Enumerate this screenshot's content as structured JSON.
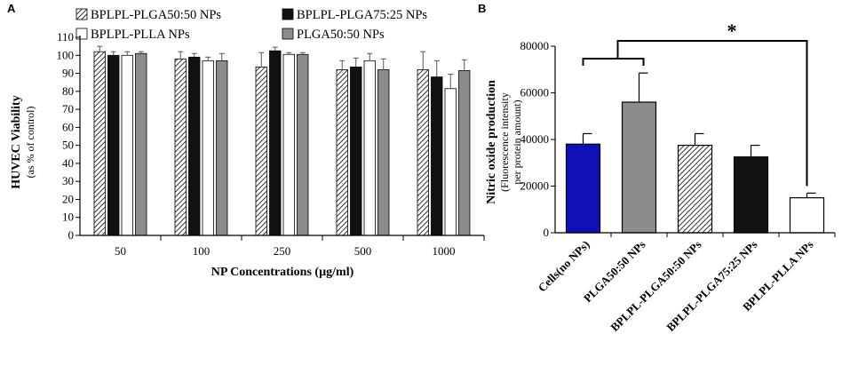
{
  "colors": {
    "axis": "#000000",
    "black": "#111111",
    "white": "#ffffff",
    "gray": "#8c8c8c",
    "gray_b": "#9a9a9d",
    "blue": "#1010b8"
  },
  "chart_data": [
    {
      "panel": "A",
      "type": "bar",
      "title": "",
      "xlabel": "NP Concentrations (µg/ml)",
      "ylabel": "HUVEC Viability",
      "ylabel_sub": "(as % of control)",
      "ylim": [
        0,
        110
      ],
      "yticks": [
        "0",
        "10",
        "20",
        "30",
        "40",
        "50",
        "60",
        "70",
        "80",
        "90",
        "100",
        "110"
      ],
      "categories": [
        "50",
        "100",
        "250",
        "500",
        "1000"
      ],
      "legend_position": "top",
      "series": [
        {
          "name": "BPLPL-PLGA50:50 NPs",
          "style": "hatch",
          "values": [
            102,
            98,
            93.5,
            92,
            92
          ],
          "errors": [
            3,
            4,
            8,
            5,
            10
          ]
        },
        {
          "name": "BPLPL-PLGA75:25 NPs",
          "style": "black",
          "values": [
            100,
            99,
            102.5,
            93.5,
            88
          ],
          "errors": [
            2,
            2,
            2,
            5,
            9
          ]
        },
        {
          "name": "BPLPL-PLLA NPs",
          "style": "white",
          "values": [
            100,
            97,
            100.5,
            97,
            81.5
          ],
          "errors": [
            2,
            2,
            1,
            4,
            8
          ]
        },
        {
          "name": "PLGA50:50 NPs",
          "style": "gray",
          "values": [
            101,
            97,
            100.5,
            92,
            91.5
          ],
          "errors": [
            1,
            4,
            1,
            6,
            6
          ]
        }
      ]
    },
    {
      "panel": "B",
      "type": "bar",
      "title": "",
      "xlabel": "",
      "ylabel": "Nitric oxide production",
      "ylabel_sub1": "(Fluorescence intensity",
      "ylabel_sub2": "per protein amount)",
      "ylim": [
        0,
        80000
      ],
      "yticks": [
        "0",
        "20000",
        "40000",
        "60000",
        "80000"
      ],
      "categories": [
        "Cells(no NPs)",
        "PLGA50:50 NPs",
        "BPLPL-PLGA50:50 NPs",
        "BPLPL-PLGA75:25 NPs",
        "BPLPL-PLLA NPs"
      ],
      "values": [
        38000,
        56000,
        37500,
        32500,
        15000
      ],
      "errors": [
        4500,
        12500,
        5000,
        5000,
        2000
      ],
      "styles": [
        "blue",
        "gray",
        "hatch",
        "black",
        "white"
      ],
      "significance": "*"
    }
  ]
}
